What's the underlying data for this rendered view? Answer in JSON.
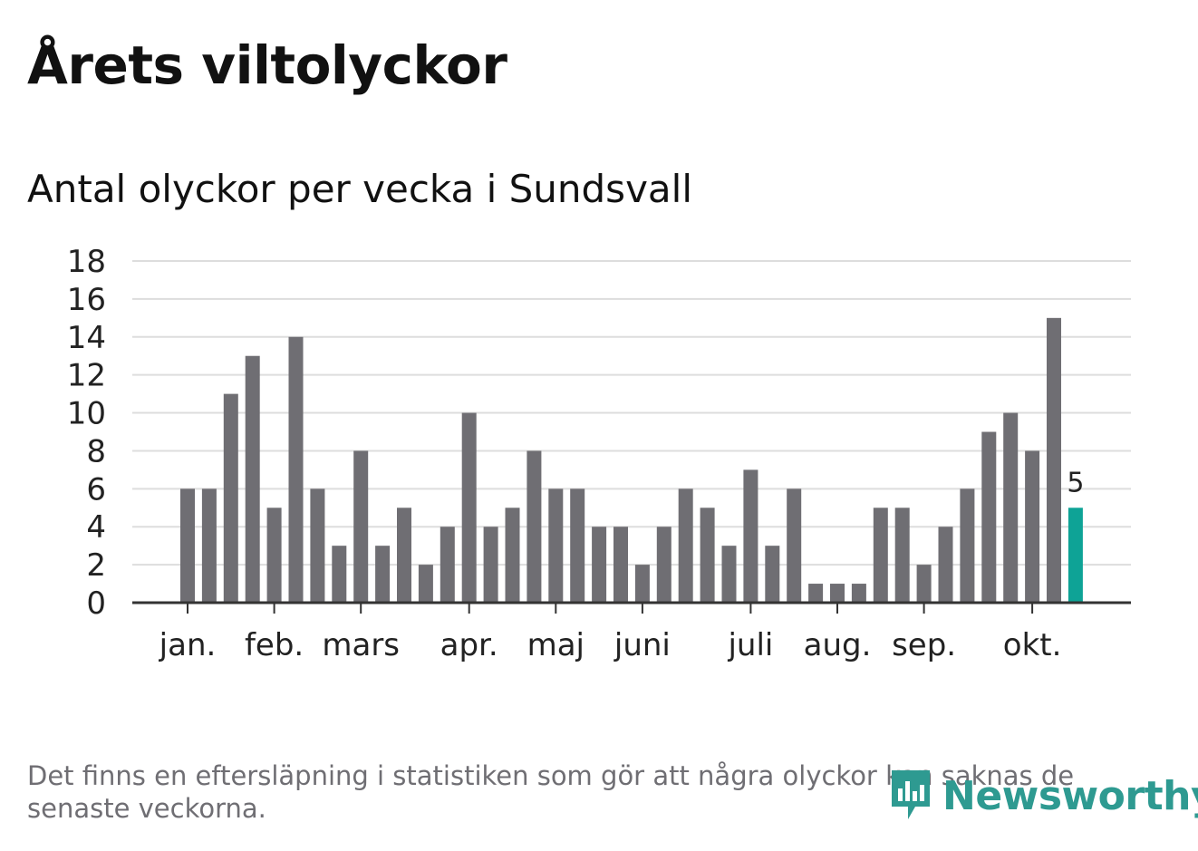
{
  "title": "Årets viltolyckor",
  "subtitle": "Antal olyckor per vecka i Sundsvall",
  "footnote": "Det finns en eftersläpning i statistiken som gör att några olyckor kan saknas de senaste veckorna.",
  "brand": {
    "name": "Newsworthy",
    "icon": "newsworthy-logo-icon"
  },
  "colors": {
    "bar": "#6f6e73",
    "highlight": "#0ea396",
    "grid": "#dddddd",
    "axis": "#333333",
    "text": "#222222"
  },
  "chart_data": {
    "type": "bar",
    "title": "Antal olyckor per vecka i Sundsvall",
    "xlabel": "",
    "ylabel": "",
    "ylim": [
      0,
      18
    ],
    "yticks": [
      0,
      2,
      4,
      6,
      8,
      10,
      12,
      14,
      16,
      18
    ],
    "values": [
      6,
      6,
      11,
      13,
      5,
      14,
      6,
      3,
      8,
      3,
      5,
      2,
      4,
      10,
      4,
      5,
      8,
      6,
      6,
      4,
      4,
      2,
      4,
      6,
      5,
      3,
      7,
      3,
      6,
      1,
      1,
      1,
      5,
      5,
      2,
      4,
      6,
      9,
      10,
      8,
      15,
      5
    ],
    "highlight_index": 41,
    "highlight_label": "5",
    "month_labels": [
      {
        "label": "jan.",
        "bar_index": 0
      },
      {
        "label": "feb.",
        "bar_index": 4
      },
      {
        "label": "mars",
        "bar_index": 8
      },
      {
        "label": "apr.",
        "bar_index": 13
      },
      {
        "label": "maj",
        "bar_index": 17
      },
      {
        "label": "juni",
        "bar_index": 21
      },
      {
        "label": "juli",
        "bar_index": 26
      },
      {
        "label": "aug.",
        "bar_index": 30
      },
      {
        "label": "sep.",
        "bar_index": 34
      },
      {
        "label": "okt.",
        "bar_index": 39
      }
    ],
    "grid": true,
    "legend": "none"
  }
}
